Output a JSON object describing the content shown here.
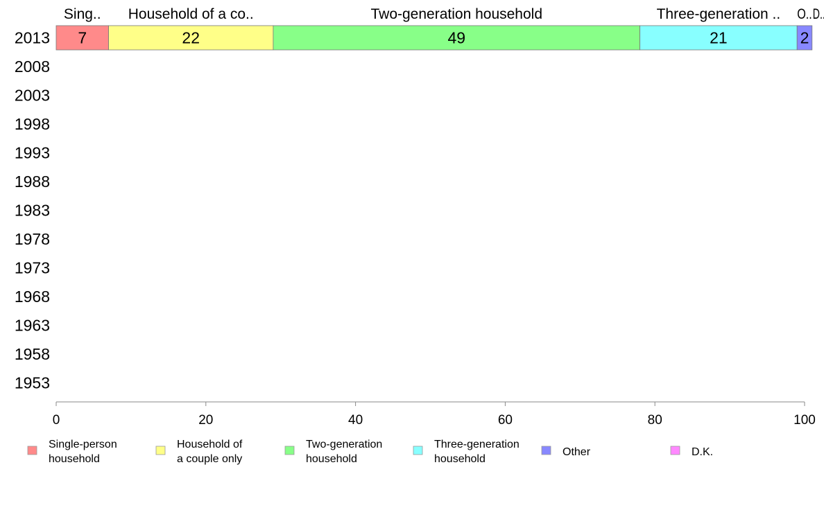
{
  "chart_data": {
    "type": "bar",
    "orientation": "horizontal",
    "stacked": true,
    "title": "",
    "xlabel": "",
    "ylabel": "",
    "xlim": [
      0,
      100
    ],
    "x_ticks": [
      0,
      20,
      40,
      60,
      80,
      100
    ],
    "grid": false,
    "legend_position": "bottom",
    "categories": [
      "2013",
      "2008",
      "2003",
      "1998",
      "1993",
      "1988",
      "1983",
      "1978",
      "1973",
      "1968",
      "1963",
      "1958",
      "1953"
    ],
    "series": [
      {
        "name": "Single-person household",
        "legend_lines": [
          "Single-person",
          "household"
        ],
        "header_label": "Sing..",
        "color": "#ff8a8a",
        "values": [
          7,
          null,
          null,
          null,
          null,
          null,
          null,
          null,
          null,
          null,
          null,
          null,
          null
        ]
      },
      {
        "name": "Household of a couple only",
        "legend_lines": [
          "Household of",
          "a couple only"
        ],
        "header_label": "Household of a co..",
        "color": "#ffff88",
        "values": [
          22,
          null,
          null,
          null,
          null,
          null,
          null,
          null,
          null,
          null,
          null,
          null,
          null
        ]
      },
      {
        "name": "Two-generation household",
        "legend_lines": [
          "Two-generation",
          "household"
        ],
        "header_label": "Two-generation household",
        "color": "#88ff88",
        "values": [
          49,
          null,
          null,
          null,
          null,
          null,
          null,
          null,
          null,
          null,
          null,
          null,
          null
        ]
      },
      {
        "name": "Three-generation household",
        "legend_lines": [
          "Three-generation",
          "household"
        ],
        "header_label": "Three-generation ..",
        "color": "#88ffff",
        "values": [
          21,
          null,
          null,
          null,
          null,
          null,
          null,
          null,
          null,
          null,
          null,
          null,
          null
        ]
      },
      {
        "name": "Other",
        "legend_lines": [
          "Other"
        ],
        "header_label": "O..",
        "color": "#8888ff",
        "values": [
          2,
          null,
          null,
          null,
          null,
          null,
          null,
          null,
          null,
          null,
          null,
          null,
          null
        ]
      },
      {
        "name": "D.K.",
        "legend_lines": [
          "D.K."
        ],
        "header_label": "D..",
        "color": "#ff88ff",
        "values": [
          0,
          null,
          null,
          null,
          null,
          null,
          null,
          null,
          null,
          null,
          null,
          null,
          null
        ]
      }
    ]
  }
}
